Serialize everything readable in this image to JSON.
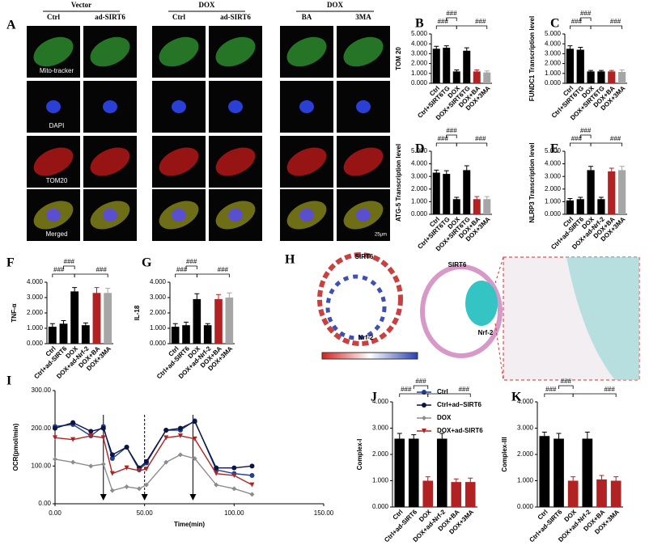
{
  "figure_a": {
    "panel": "A",
    "groups": [
      "Vector",
      "DOX",
      "DOX"
    ],
    "columns": [
      "Ctrl",
      "ad-SIRT6",
      "Ctrl",
      "ad-SIRT6",
      "BA",
      "3MA"
    ],
    "rows": [
      "Mito-tracker",
      "DAPI",
      "TOM20",
      "Merged"
    ],
    "scale_bar": "25μm"
  },
  "figure_h": {
    "panel": "H",
    "labels": [
      "SIRT6",
      "Nrf-2",
      "SIRT6",
      "Nrf-2"
    ]
  },
  "chart_data": [
    {
      "type": "bar",
      "panel": "B",
      "ylabel": "TOM 20",
      "categories": [
        "Ctrl",
        "Ctrl+SIRT6TG",
        "DOX",
        "DOX+SIRT6TG",
        "DOX+BA",
        "DOX+3MA"
      ],
      "values": [
        3.5,
        3.6,
        1.2,
        3.3,
        1.2,
        1.1
      ],
      "errors": [
        0.25,
        0.2,
        0.15,
        0.3,
        0.15,
        0.15
      ],
      "colors": [
        "#000000",
        "#000000",
        "#000000",
        "#000000",
        "#b22222",
        "#a6a6a6"
      ],
      "ylim": [
        0,
        5
      ],
      "yticks": [
        {
          "value": 0,
          "label": "0.000"
        },
        {
          "value": 1,
          "label": "1.000"
        },
        {
          "value": 2,
          "label": "2.000"
        },
        {
          "value": 3,
          "label": "3.000"
        },
        {
          "value": 4,
          "label": "4.000"
        },
        {
          "value": 5,
          "label": "5.000"
        }
      ],
      "significance": [
        "###",
        "###",
        "###"
      ]
    },
    {
      "type": "bar",
      "panel": "C",
      "ylabel": "FUNDC1 Transcription level",
      "categories": [
        "Ctrl",
        "Ctrl+SIRT6TG",
        "DOX",
        "DOX+SIRT6TG",
        "DOX+BA",
        "DOX+3MA"
      ],
      "values": [
        3.5,
        3.4,
        1.2,
        1.2,
        1.2,
        1.15
      ],
      "errors": [
        0.3,
        0.25,
        0.1,
        0.1,
        0.1,
        0.2
      ],
      "colors": [
        "#000000",
        "#000000",
        "#000000",
        "#000000",
        "#b22222",
        "#a6a6a6"
      ],
      "ylim": [
        0,
        5
      ],
      "yticks": [
        {
          "value": 0,
          "label": "0.000"
        },
        {
          "value": 1,
          "label": "1.000"
        },
        {
          "value": 2,
          "label": "2.000"
        },
        {
          "value": 3,
          "label": "3.000"
        },
        {
          "value": 4,
          "label": "4.000"
        },
        {
          "value": 5,
          "label": "5.000"
        }
      ],
      "significance": [
        "###",
        "###",
        "###"
      ]
    },
    {
      "type": "bar",
      "panel": "D",
      "ylabel": "ATG-5 Transcription level",
      "categories": [
        "Ctrl",
        "Ctrl+SIRT6TG",
        "DOX",
        "DOX+SIRT6TG",
        "DOX+BA",
        "DOX+3MA"
      ],
      "values": [
        3.3,
        3.2,
        1.2,
        3.5,
        1.2,
        1.2
      ],
      "errors": [
        0.2,
        0.25,
        0.15,
        0.35,
        0.2,
        0.2
      ],
      "colors": [
        "#000000",
        "#000000",
        "#000000",
        "#000000",
        "#b22222",
        "#a6a6a6"
      ],
      "ylim": [
        0,
        5
      ],
      "yticks": [
        {
          "value": 0,
          "label": "0.000"
        },
        {
          "value": 1,
          "label": "1.000"
        },
        {
          "value": 2,
          "label": "2.000"
        },
        {
          "value": 3,
          "label": "3.000"
        },
        {
          "value": 4,
          "label": "4.000"
        },
        {
          "value": 5,
          "label": "5.000"
        }
      ],
      "significance": [
        "###",
        "###",
        "###"
      ]
    },
    {
      "type": "bar",
      "panel": "E",
      "ylabel": "NLRP3 Transcription level",
      "categories": [
        "Ctrl",
        "Ctrl+ad-SIRT6",
        "DOX",
        "DOX+ad-Nrf-2",
        "DOX+BA",
        "DOX+3MA"
      ],
      "values": [
        1.1,
        1.2,
        3.5,
        1.2,
        3.4,
        3.5
      ],
      "errors": [
        0.15,
        0.15,
        0.3,
        0.15,
        0.25,
        0.3
      ],
      "colors": [
        "#000000",
        "#000000",
        "#000000",
        "#000000",
        "#b22222",
        "#a6a6a6"
      ],
      "ylim": [
        0,
        5
      ],
      "yticks": [
        {
          "value": 0,
          "label": "0.000"
        },
        {
          "value": 1,
          "label": "1.000"
        },
        {
          "value": 2,
          "label": "2.000"
        },
        {
          "value": 3,
          "label": "3.000"
        },
        {
          "value": 4,
          "label": "4.000"
        },
        {
          "value": 5,
          "label": "5.000"
        }
      ],
      "significance": [
        "###",
        "###",
        "###"
      ]
    },
    {
      "type": "bar",
      "panel": "F",
      "ylabel": "TNF-α",
      "categories": [
        "Ctrl",
        "Ctrl+ad-SIRT6",
        "DOX",
        "DOX+ad-Nrf-2",
        "DOX+BA",
        "DOX+3MA"
      ],
      "values": [
        1.1,
        1.3,
        3.4,
        1.2,
        3.3,
        3.3
      ],
      "errors": [
        0.2,
        0.2,
        0.25,
        0.15,
        0.35,
        0.3
      ],
      "colors": [
        "#000000",
        "#000000",
        "#000000",
        "#000000",
        "#b22222",
        "#a6a6a6"
      ],
      "ylim": [
        0,
        4
      ],
      "yticks": [
        {
          "value": 0,
          "label": "0.000"
        },
        {
          "value": 1,
          "label": "1.000"
        },
        {
          "value": 2,
          "label": "2.000"
        },
        {
          "value": 3,
          "label": "3.000"
        },
        {
          "value": 4,
          "label": "4.000"
        }
      ],
      "significance": [
        "###",
        "###",
        "###"
      ]
    },
    {
      "type": "bar",
      "panel": "G",
      "ylabel": "IL-18",
      "categories": [
        "Ctrl",
        "Ctrl+ad-SIRT6",
        "DOX",
        "DOX+ad-Nrf-2",
        "DOX+BA",
        "DOX+3MA"
      ],
      "values": [
        1.1,
        1.2,
        2.9,
        1.2,
        2.9,
        3.0
      ],
      "errors": [
        0.2,
        0.2,
        0.35,
        0.1,
        0.3,
        0.3
      ],
      "colors": [
        "#000000",
        "#000000",
        "#000000",
        "#000000",
        "#b22222",
        "#a6a6a6"
      ],
      "ylim": [
        0,
        4
      ],
      "yticks": [
        {
          "value": 0,
          "label": "0.000"
        },
        {
          "value": 1,
          "label": "1.000"
        },
        {
          "value": 2,
          "label": "2.000"
        },
        {
          "value": 3,
          "label": "3.000"
        },
        {
          "value": 4,
          "label": "4.000"
        }
      ],
      "significance": [
        "###",
        "###",
        "###"
      ]
    },
    {
      "type": "line",
      "panel": "I",
      "xlabel": "Time(min)",
      "ylabel": "OCR(pmol/min)",
      "x": [
        0,
        10,
        20,
        27,
        32,
        40,
        47,
        51,
        62,
        70,
        78,
        90,
        100,
        110
      ],
      "series": [
        {
          "name": "Ctrl",
          "color": "#1f3f99",
          "marker": "circle",
          "values": [
            205,
            210,
            180,
            205,
            120,
            150,
            90,
            108,
            195,
            195,
            220,
            90,
            80,
            75
          ]
        },
        {
          "name": "Ctrl+ad–SIRT6",
          "color": "#0d1440",
          "marker": "circle",
          "values": [
            200,
            215,
            192,
            200,
            130,
            150,
            95,
            112,
            195,
            200,
            218,
            95,
            95,
            100
          ]
        },
        {
          "name": "DOX",
          "color": "#8c8c8c",
          "marker": "diamond",
          "values": [
            118,
            110,
            100,
            105,
            35,
            45,
            40,
            50,
            110,
            130,
            120,
            50,
            40,
            25
          ]
        },
        {
          "name": "DOX+ad-SIRT6",
          "color": "#b22222",
          "marker": "triangle",
          "values": [
            175,
            170,
            180,
            175,
            80,
            95,
            88,
            92,
            175,
            180,
            172,
            80,
            75,
            50
          ]
        }
      ],
      "injections": [
        27,
        50,
        77
      ],
      "xlim": [
        0,
        150
      ],
      "xticks": [
        {
          "value": 0,
          "label": "0.00"
        },
        {
          "value": 50,
          "label": "50.00"
        },
        {
          "value": 100,
          "label": "100.00"
        },
        {
          "value": 150,
          "label": "150.00"
        }
      ],
      "ylim": [
        0,
        300
      ],
      "yticks": [
        {
          "value": 0,
          "label": "0.00"
        },
        {
          "value": 100,
          "label": "100.00"
        },
        {
          "value": 200,
          "label": "200.00"
        },
        {
          "value": 300,
          "label": "300.00"
        }
      ]
    },
    {
      "type": "bar",
      "panel": "J",
      "ylabel": "Complex-I",
      "categories": [
        "Ctrl",
        "Ctrl+ad-SIRT6",
        "DOX",
        "DOX+ad-Nrf-2",
        "DOX+BA",
        "DOX+3MA"
      ],
      "values": [
        2.6,
        2.6,
        1.0,
        2.6,
        0.95,
        0.95
      ],
      "errors": [
        0.2,
        0.15,
        0.15,
        0.2,
        0.12,
        0.15
      ],
      "colors": [
        "#000000",
        "#000000",
        "#b22222",
        "#000000",
        "#b22222",
        "#b22222"
      ],
      "ylim": [
        0,
        4
      ],
      "yticks": [
        {
          "value": 0,
          "label": "0.000"
        },
        {
          "value": 1,
          "label": "1.000"
        },
        {
          "value": 2,
          "label": "2.000"
        },
        {
          "value": 3,
          "label": "3.000"
        },
        {
          "value": 4,
          "label": "4.000"
        }
      ],
      "significance": [
        "###",
        "###",
        "###"
      ]
    },
    {
      "type": "bar",
      "panel": "K",
      "ylabel": "Complex-III",
      "categories": [
        "Ctrl",
        "Ctrl+ad-SIRT6",
        "DOX",
        "DOX+ad-Nrf-2",
        "DOX+BA",
        "DOX+3MA"
      ],
      "values": [
        2.7,
        2.6,
        1.0,
        2.6,
        1.05,
        1.0
      ],
      "errors": [
        0.15,
        0.2,
        0.15,
        0.25,
        0.15,
        0.15
      ],
      "colors": [
        "#000000",
        "#000000",
        "#b22222",
        "#000000",
        "#b22222",
        "#b22222"
      ],
      "ylim": [
        0,
        4
      ],
      "yticks": [
        {
          "value": 0,
          "label": "0.000"
        },
        {
          "value": 1,
          "label": "1.000"
        },
        {
          "value": 2,
          "label": "2.000"
        },
        {
          "value": 3,
          "label": "3.000"
        },
        {
          "value": 4,
          "label": "4.000"
        }
      ],
      "significance": [
        "###",
        "###",
        "###"
      ]
    }
  ]
}
